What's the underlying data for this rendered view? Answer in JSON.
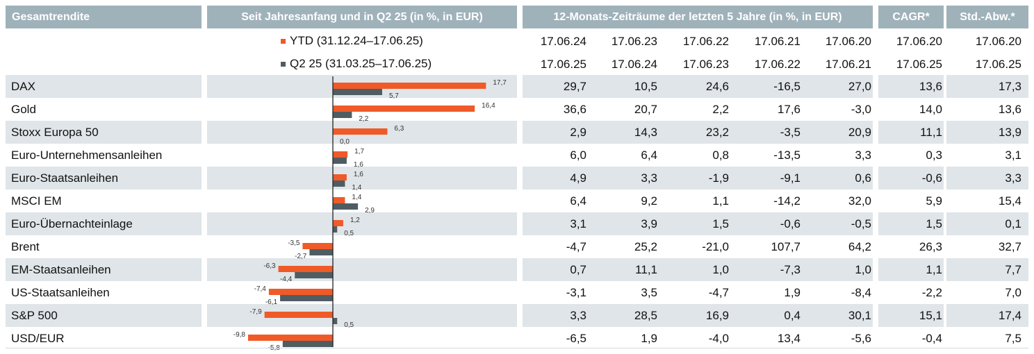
{
  "headers": {
    "label": "Gesamtrendite",
    "chart": "Seit Jahresanfang und in Q2 25 (in %, in EUR)",
    "periods": "12-Monats-Zeiträume der letzten 5 Jahre (in %, in EUR)",
    "cagr": "CAGR*",
    "std": "Std.-Abw.*"
  },
  "legend": {
    "ytd": "YTD (31.12.24–17.06.25)",
    "q2": "Q2 25 (31.03.25–17.06.25)"
  },
  "period_dates": {
    "from": [
      "17.06.24",
      "17.06.23",
      "17.06.22",
      "17.06.21",
      "17.06.20"
    ],
    "to": [
      "17.06.25",
      "17.06.24",
      "17.06.23",
      "17.06.22",
      "17.06.21"
    ],
    "cagr_from": "17.06.20",
    "cagr_to": "17.06.25",
    "std_from": "17.06.20",
    "std_to": "17.06.25"
  },
  "colors": {
    "ytd": "#f05a28",
    "q2": "#4f5d63",
    "header": "#9fb2ba",
    "row": "#dfe5e8"
  },
  "chart_data": {
    "type": "bar",
    "orientation": "horizontal",
    "categories": [
      "DAX",
      "Gold",
      "Stoxx Europa 50",
      "Euro-Unternehmensanleihen",
      "Euro-Staatsanleihen",
      "MSCI EM",
      "Euro-Übernachteinlage",
      "Brent",
      "EM-Staatsanleihen",
      "US-Staatsanleihen",
      "S&P 500",
      "USD/EUR"
    ],
    "series": [
      {
        "name": "YTD (31.12.24–17.06.25)",
        "values": [
          17.7,
          16.4,
          6.3,
          1.7,
          1.6,
          1.4,
          1.2,
          -3.5,
          -6.3,
          -7.4,
          -7.9,
          -9.8
        ],
        "labels": [
          "17,7",
          "16,4",
          "6,3",
          "1,7",
          "1,6",
          "1,4",
          "1,2",
          "-3,5",
          "-6,3",
          "-7,4",
          "-7,9",
          "-9,8"
        ]
      },
      {
        "name": "Q2 25 (31.03.25–17.06.25)",
        "values": [
          5.7,
          2.2,
          0.0,
          1.6,
          1.4,
          2.9,
          0.5,
          -2.7,
          -4.4,
          -6.1,
          0.5,
          -5.8
        ],
        "labels": [
          "5,7",
          "2,2",
          "0,0",
          "1,6",
          "1,4",
          "2,9",
          "0,5",
          "-2,7",
          "-4,4",
          "-6,1",
          "0,5",
          "-5,8"
        ]
      }
    ]
  },
  "rows": [
    {
      "name": "DAX",
      "periods": [
        "29,7",
        "10,5",
        "24,6",
        "-16,5",
        "27,0"
      ],
      "cagr": "13,6",
      "std": "17,3"
    },
    {
      "name": "Gold",
      "periods": [
        "36,6",
        "20,7",
        "2,2",
        "17,6",
        "-3,0"
      ],
      "cagr": "14,0",
      "std": "13,6"
    },
    {
      "name": "Stoxx Europa 50",
      "periods": [
        "2,9",
        "14,3",
        "23,2",
        "-3,5",
        "20,9"
      ],
      "cagr": "11,1",
      "std": "13,9"
    },
    {
      "name": "Euro-Unternehmensanleihen",
      "periods": [
        "6,0",
        "6,4",
        "0,8",
        "-13,5",
        "3,3"
      ],
      "cagr": "0,3",
      "std": "3,1"
    },
    {
      "name": "Euro-Staatsanleihen",
      "periods": [
        "4,9",
        "3,3",
        "-1,9",
        "-9,1",
        "0,6"
      ],
      "cagr": "-0,6",
      "std": "3,3"
    },
    {
      "name": "MSCI EM",
      "periods": [
        "6,4",
        "9,2",
        "1,1",
        "-14,2",
        "32,0"
      ],
      "cagr": "5,9",
      "std": "15,4"
    },
    {
      "name": "Euro-Übernachteinlage",
      "periods": [
        "3,1",
        "3,9",
        "1,5",
        "-0,6",
        "-0,5"
      ],
      "cagr": "1,5",
      "std": "0,1"
    },
    {
      "name": "Brent",
      "periods": [
        "-4,7",
        "25,2",
        "-21,0",
        "107,7",
        "64,2"
      ],
      "cagr": "26,3",
      "std": "32,7"
    },
    {
      "name": "EM-Staatsanleihen",
      "periods": [
        "0,7",
        "11,1",
        "1,0",
        "-7,3",
        "1,0"
      ],
      "cagr": "1,1",
      "std": "7,7"
    },
    {
      "name": "US-Staatsanleihen",
      "periods": [
        "-3,1",
        "3,5",
        "-4,7",
        "1,9",
        "-8,4"
      ],
      "cagr": "-2,2",
      "std": "7,0"
    },
    {
      "name": "S&P 500",
      "periods": [
        "3,3",
        "28,5",
        "16,9",
        "0,4",
        "30,1"
      ],
      "cagr": "15,1",
      "std": "17,4"
    },
    {
      "name": "USD/EUR",
      "periods": [
        "-6,5",
        "1,9",
        "-4,0",
        "13,4",
        "-5,6"
      ],
      "cagr": "-0,4",
      "std": "7,5"
    }
  ]
}
